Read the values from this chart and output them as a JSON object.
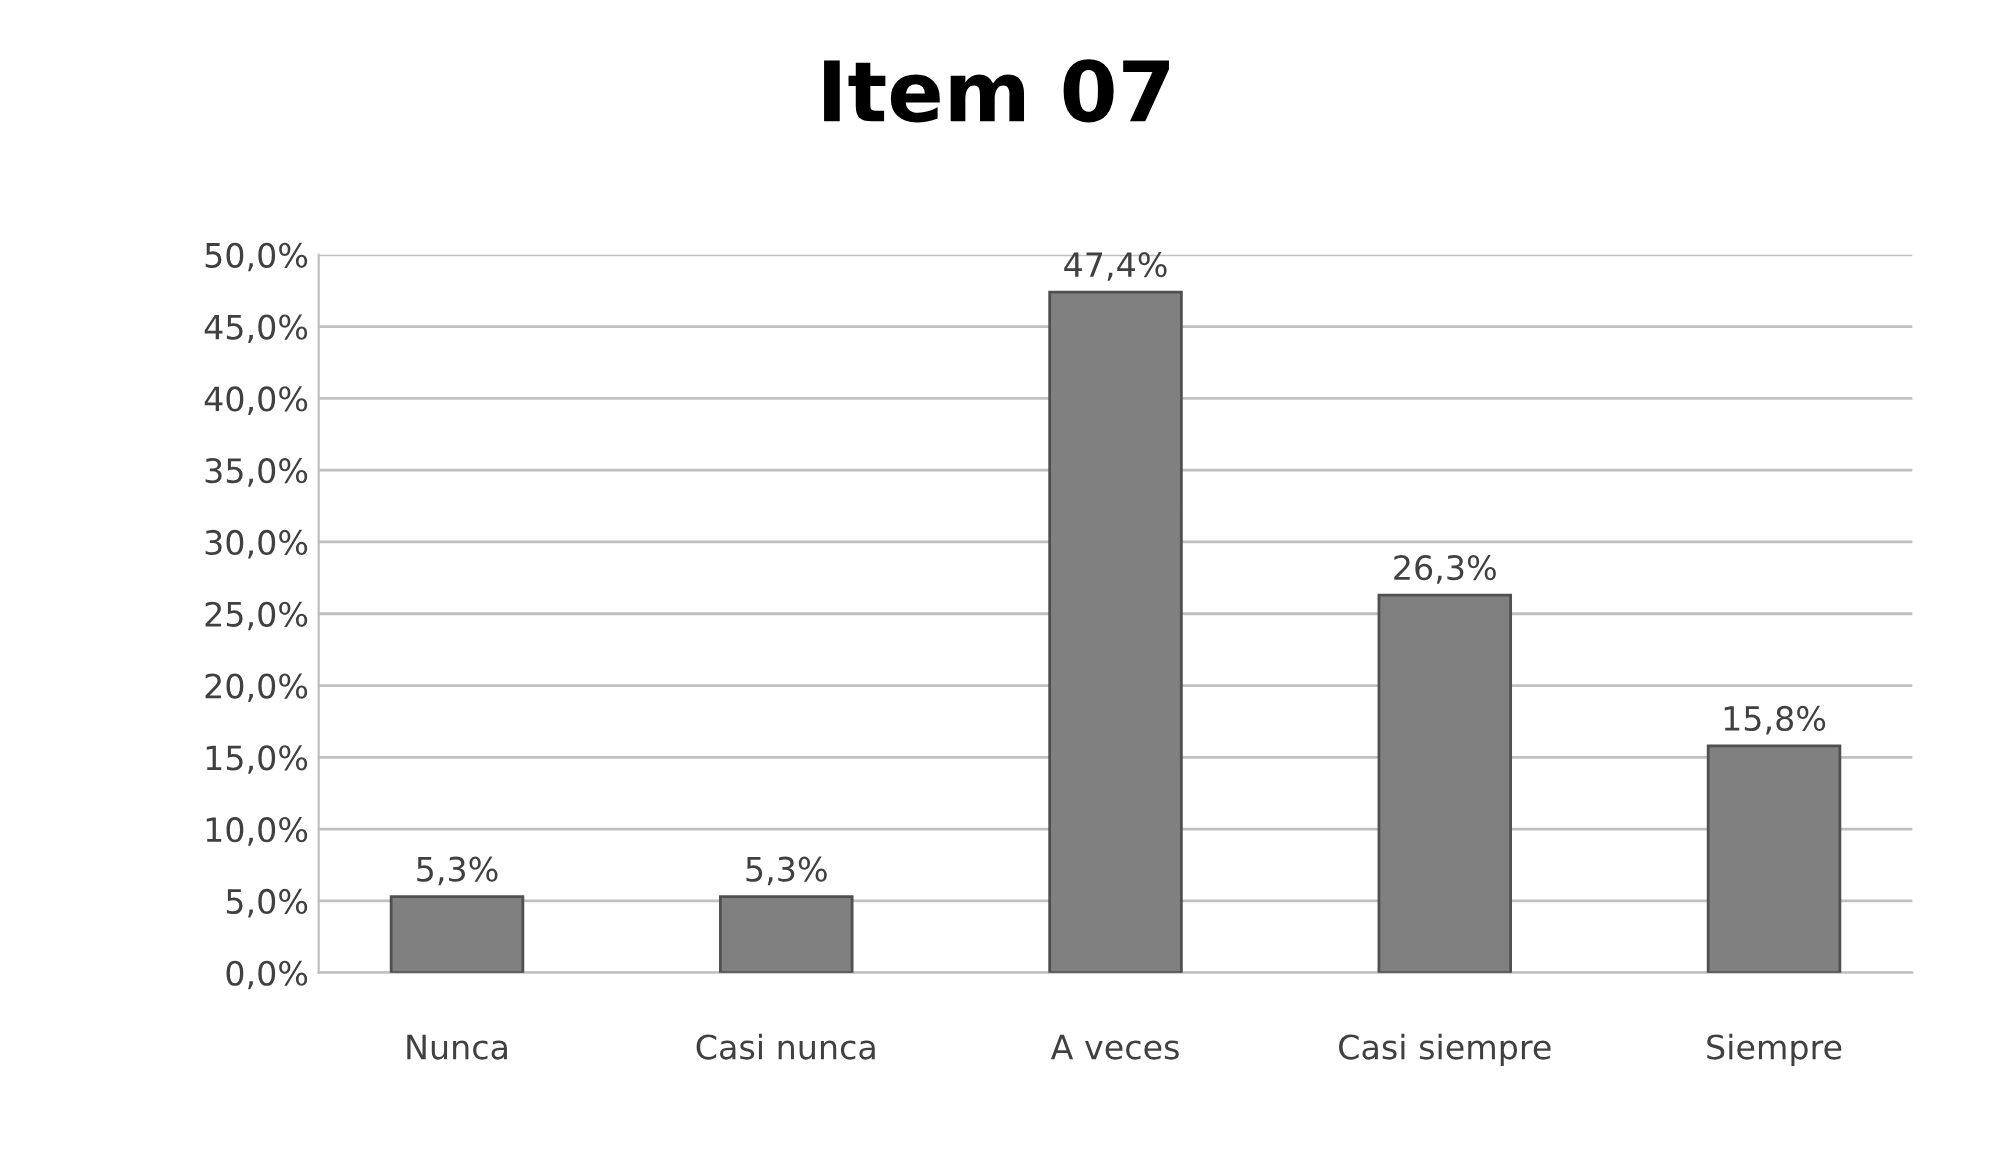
{
  "chart_data": {
    "type": "bar",
    "title": "Item 07",
    "categories": [
      "Nunca",
      "Casi nunca",
      "A veces",
      "Casi siempre",
      "Siempre"
    ],
    "values": [
      5.3,
      5.3,
      47.4,
      26.3,
      15.8
    ],
    "value_labels": [
      "5,3%",
      "5,3%",
      "47,4%",
      "26,3%",
      "15,8%"
    ],
    "color": "#808080",
    "ylim": [
      0,
      50
    ],
    "yticks": [
      {
        "value": 0,
        "label": "0,0%"
      },
      {
        "value": 5,
        "label": "5,0%"
      },
      {
        "value": 10,
        "label": "10,0%"
      },
      {
        "value": 15,
        "label": "15,0%"
      },
      {
        "value": 20,
        "label": "20,0%"
      },
      {
        "value": 25,
        "label": "25,0%"
      },
      {
        "value": 30,
        "label": "30,0%"
      },
      {
        "value": 35,
        "label": "35,0%"
      },
      {
        "value": 40,
        "label": "40,0%"
      },
      {
        "value": 45,
        "label": "45,0%"
      },
      {
        "value": 50,
        "label": "50,0%"
      }
    ],
    "grid": "y"
  }
}
